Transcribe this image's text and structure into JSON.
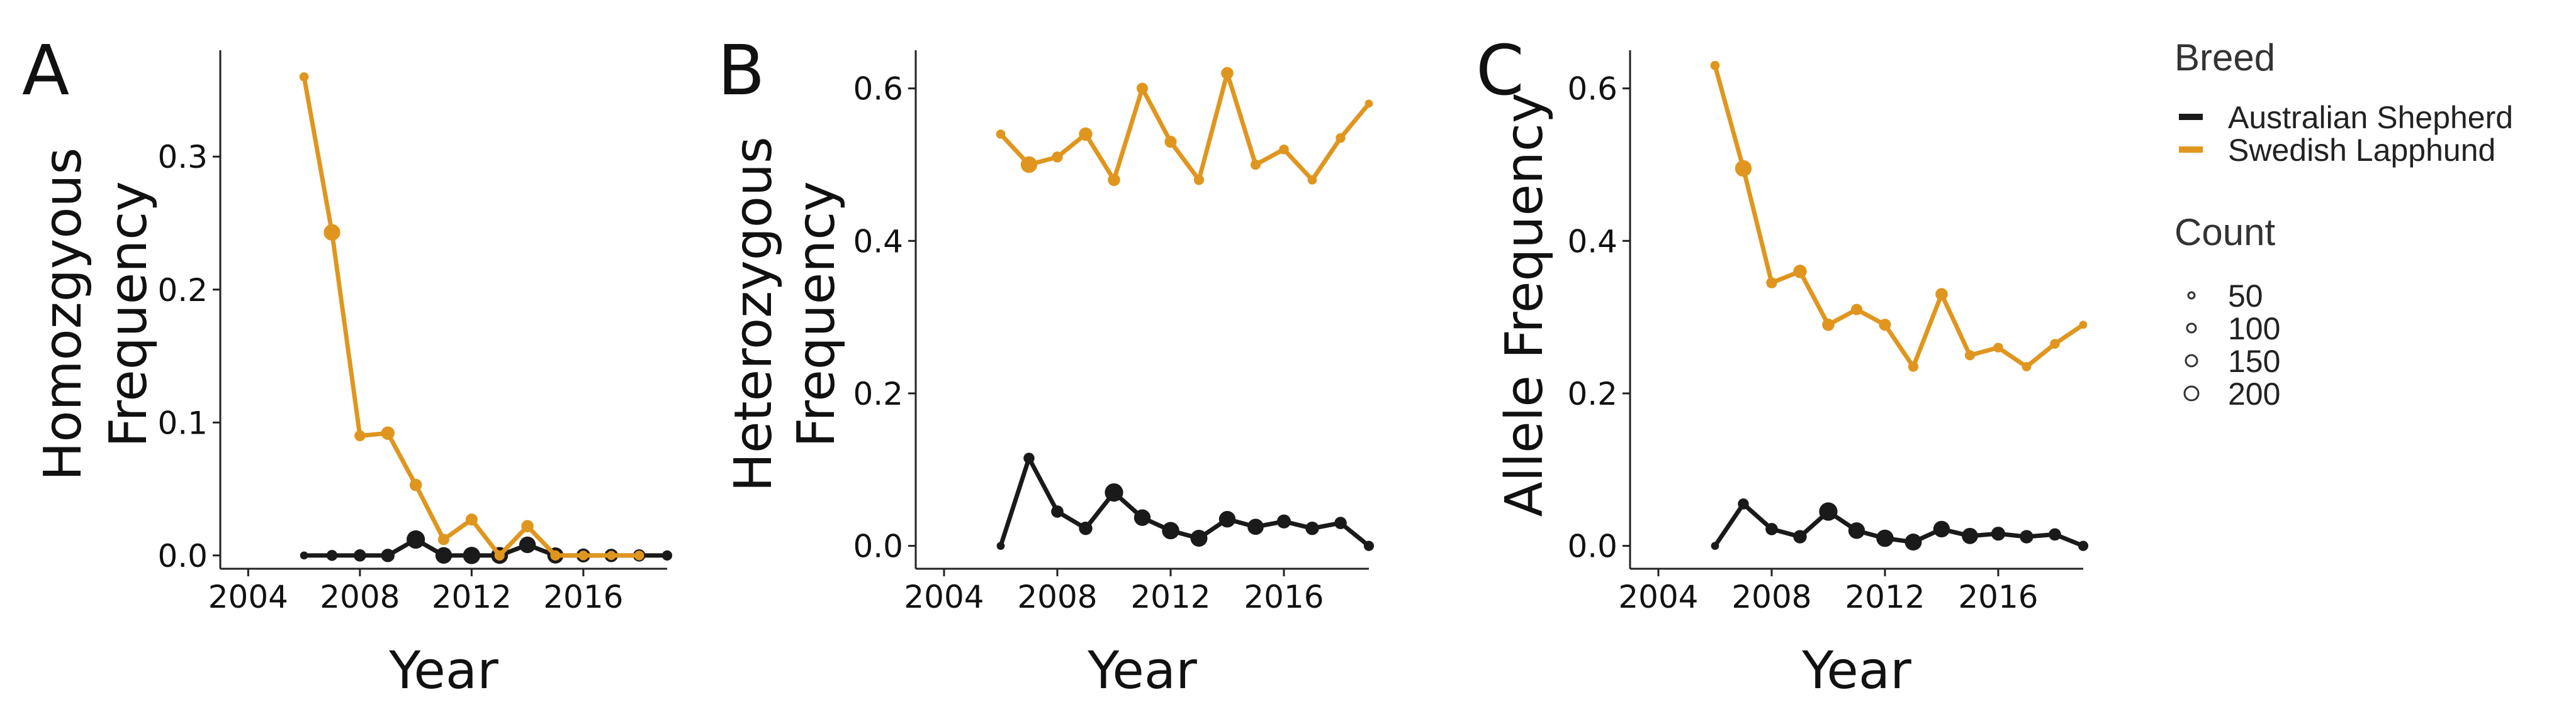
{
  "legend": {
    "breed_title": "Breed",
    "breeds": [
      {
        "name": "Australian Shepherd",
        "color": "#1a1a1a"
      },
      {
        "name": "Swedish Lapphund",
        "color": "#e0961e"
      }
    ],
    "count_title": "Count",
    "counts": [
      "50",
      "100",
      "150",
      "200"
    ]
  },
  "chart_data": [
    {
      "type": "line",
      "panel_letter": "A",
      "ylabel_lines": [
        "Homozgyous",
        "Frequency"
      ],
      "xlabel": "Year",
      "xlim": [
        2003,
        2019
      ],
      "ylim": [
        -0.01,
        0.38
      ],
      "xticks": [
        2004,
        2008,
        2012,
        2016
      ],
      "yticks": [
        0.0,
        0.1,
        0.2,
        0.3
      ],
      "ytick_labels": [
        "0.0",
        "0.1",
        "0.2",
        "0.3"
      ],
      "series": [
        {
          "name": "Australian Shepherd",
          "color": "#1a1a1a",
          "x": [
            2006,
            2007,
            2008,
            2009,
            2010,
            2011,
            2012,
            2013,
            2014,
            2015,
            2016,
            2017,
            2018,
            2019
          ],
          "y": [
            0.0,
            0.0,
            0.0,
            0.0,
            0.012,
            0.0,
            0.0,
            0.0,
            0.008,
            0.0,
            0.0,
            0.0,
            0.0,
            0.0
          ],
          "counts": [
            10,
            40,
            60,
            80,
            200,
            150,
            170,
            160,
            150,
            140,
            90,
            80,
            60,
            30
          ]
        },
        {
          "name": "Swedish Lapphund",
          "color": "#e0961e",
          "x": [
            2006,
            2007,
            2008,
            2009,
            2010,
            2011,
            2012,
            2013,
            2014,
            2015,
            2016,
            2017,
            2018
          ],
          "y": [
            0.36,
            0.243,
            0.09,
            0.092,
            0.053,
            0.012,
            0.027,
            0.0,
            0.022,
            0.0,
            0.0,
            0.0,
            0.0
          ],
          "counts": [
            20,
            150,
            40,
            80,
            60,
            45,
            55,
            30,
            60,
            30,
            25,
            20,
            25
          ]
        }
      ]
    },
    {
      "type": "line",
      "panel_letter": "B",
      "ylabel_lines": [
        "Heterozygous",
        "Frequency"
      ],
      "xlabel": "Year",
      "xlim": [
        2003,
        2019
      ],
      "ylim": [
        -0.03,
        0.65
      ],
      "xticks": [
        2004,
        2008,
        2012,
        2016
      ],
      "yticks": [
        0.0,
        0.2,
        0.4,
        0.6
      ],
      "ytick_labels": [
        "0.0",
        "0.2",
        "0.4",
        "0.6"
      ],
      "series": [
        {
          "name": "Australian Shepherd",
          "color": "#1a1a1a",
          "x": [
            2006,
            2007,
            2008,
            2009,
            2010,
            2011,
            2012,
            2013,
            2014,
            2015,
            2016,
            2017,
            2018,
            2019
          ],
          "y": [
            0.0,
            0.115,
            0.045,
            0.023,
            0.07,
            0.037,
            0.02,
            0.01,
            0.035,
            0.025,
            0.032,
            0.023,
            0.03,
            0.0
          ],
          "counts": [
            10,
            40,
            60,
            80,
            200,
            150,
            170,
            160,
            150,
            140,
            90,
            80,
            60,
            30
          ]
        },
        {
          "name": "Swedish Lapphund",
          "color": "#e0961e",
          "x": [
            2006,
            2007,
            2008,
            2009,
            2010,
            2011,
            2012,
            2013,
            2014,
            2015,
            2016,
            2017,
            2018,
            2019
          ],
          "y": [
            0.54,
            0.5,
            0.51,
            0.54,
            0.48,
            0.6,
            0.53,
            0.48,
            0.62,
            0.5,
            0.52,
            0.48,
            0.535,
            0.58
          ],
          "counts": [
            20,
            150,
            40,
            80,
            60,
            45,
            55,
            30,
            60,
            30,
            25,
            20,
            25,
            10
          ]
        }
      ]
    },
    {
      "type": "line",
      "panel_letter": "C",
      "ylabel_lines": [
        "Allele Frequency"
      ],
      "xlabel": "Year",
      "xlim": [
        2003,
        2019
      ],
      "ylim": [
        -0.03,
        0.65
      ],
      "xticks": [
        2004,
        2008,
        2012,
        2016
      ],
      "yticks": [
        0.0,
        0.2,
        0.4,
        0.6
      ],
      "ytick_labels": [
        "0.0",
        "0.2",
        "0.4",
        "0.6"
      ],
      "series": [
        {
          "name": "Australian Shepherd",
          "color": "#1a1a1a",
          "x": [
            2006,
            2007,
            2008,
            2009,
            2010,
            2011,
            2012,
            2013,
            2014,
            2015,
            2016,
            2017,
            2018,
            2019
          ],
          "y": [
            0.0,
            0.055,
            0.022,
            0.012,
            0.045,
            0.02,
            0.01,
            0.005,
            0.022,
            0.013,
            0.016,
            0.012,
            0.015,
            0.0
          ],
          "counts": [
            10,
            40,
            60,
            80,
            200,
            150,
            170,
            160,
            150,
            140,
            90,
            80,
            60,
            30
          ]
        },
        {
          "name": "Swedish Lapphund",
          "color": "#e0961e",
          "x": [
            2006,
            2007,
            2008,
            2009,
            2010,
            2011,
            2012,
            2013,
            2014,
            2015,
            2016,
            2017,
            2018,
            2019
          ],
          "y": [
            0.63,
            0.495,
            0.345,
            0.36,
            0.29,
            0.31,
            0.29,
            0.235,
            0.33,
            0.25,
            0.26,
            0.235,
            0.265,
            0.29
          ],
          "counts": [
            20,
            150,
            40,
            80,
            60,
            45,
            55,
            30,
            60,
            30,
            25,
            20,
            25,
            10
          ]
        }
      ]
    }
  ]
}
